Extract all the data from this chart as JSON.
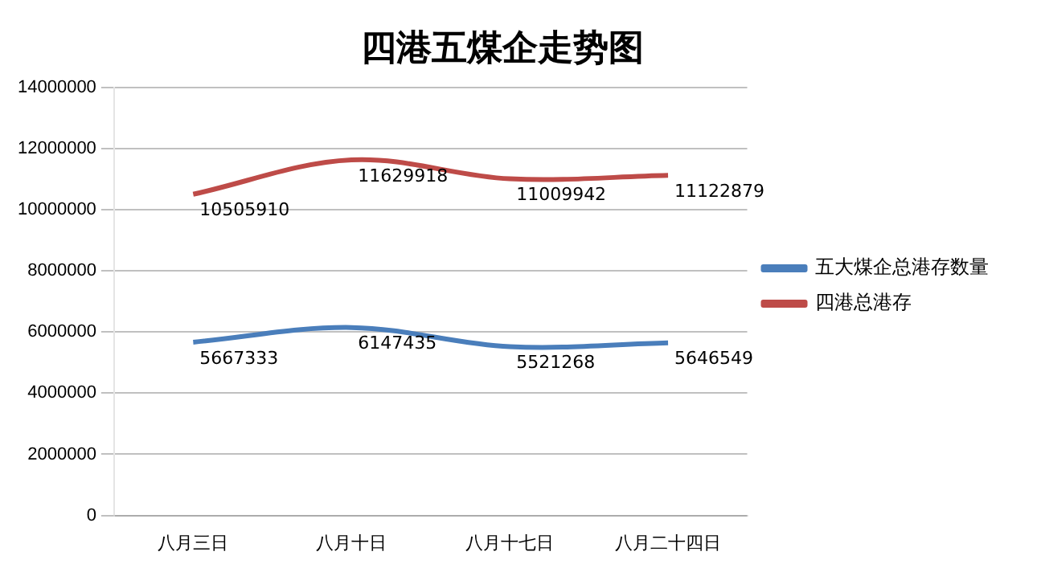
{
  "chart_data": {
    "type": "line",
    "title": "四港五煤企走势图",
    "categories": [
      "八月三日",
      "八月十日",
      "八月十七日",
      "八月二十四日"
    ],
    "series": [
      {
        "name": "五大煤企总港存数量",
        "color": "#4a7ebb",
        "values": [
          5667333,
          6147435,
          5521268,
          5646549
        ]
      },
      {
        "name": "四港总港存",
        "color": "#be4b48",
        "values": [
          10505910,
          11629918,
          11009942,
          11122879
        ]
      }
    ],
    "ylim": [
      0,
      14000000
    ],
    "yticks": [
      0,
      2000000,
      4000000,
      6000000,
      8000000,
      10000000,
      12000000,
      14000000
    ],
    "grid": "y",
    "legend": "right",
    "marker": "none",
    "line_style": "solid",
    "data_labels": true
  }
}
